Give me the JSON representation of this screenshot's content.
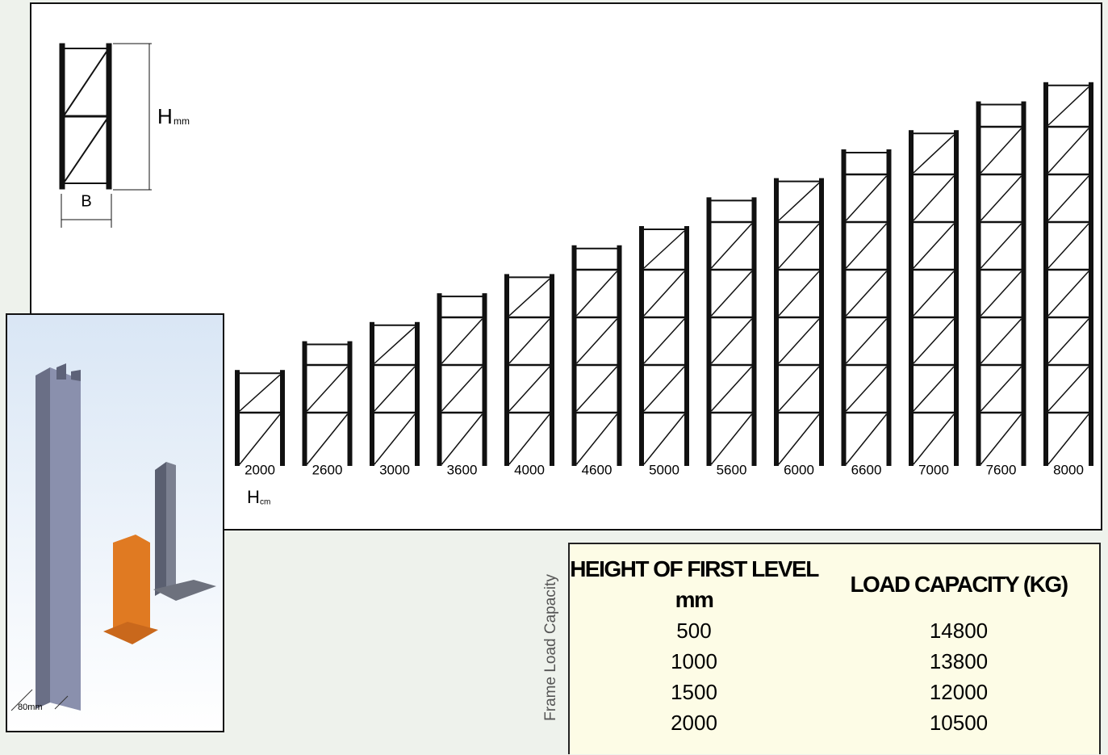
{
  "diagram": {
    "legend": {
      "height_symbol": "H",
      "height_unit": "mm",
      "width_symbol": "B"
    },
    "frames": {
      "heights": [
        2000,
        2600,
        3000,
        3600,
        4000,
        4600,
        5000,
        5600,
        6000,
        6600,
        7000,
        7600,
        8000
      ],
      "axis_symbol": "H",
      "axis_unit": "cm"
    },
    "post_photo": {
      "width_label": "80mm"
    }
  },
  "table": {
    "side_title": "Frame Load Capacity",
    "headers": [
      "HEIGHT OF FIRST LEVEL mm",
      "LOAD CAPACITY (KG)"
    ],
    "rows": [
      [
        500,
        14800
      ],
      [
        1000,
        13800
      ],
      [
        1500,
        12000
      ],
      [
        2000,
        10500
      ]
    ]
  }
}
